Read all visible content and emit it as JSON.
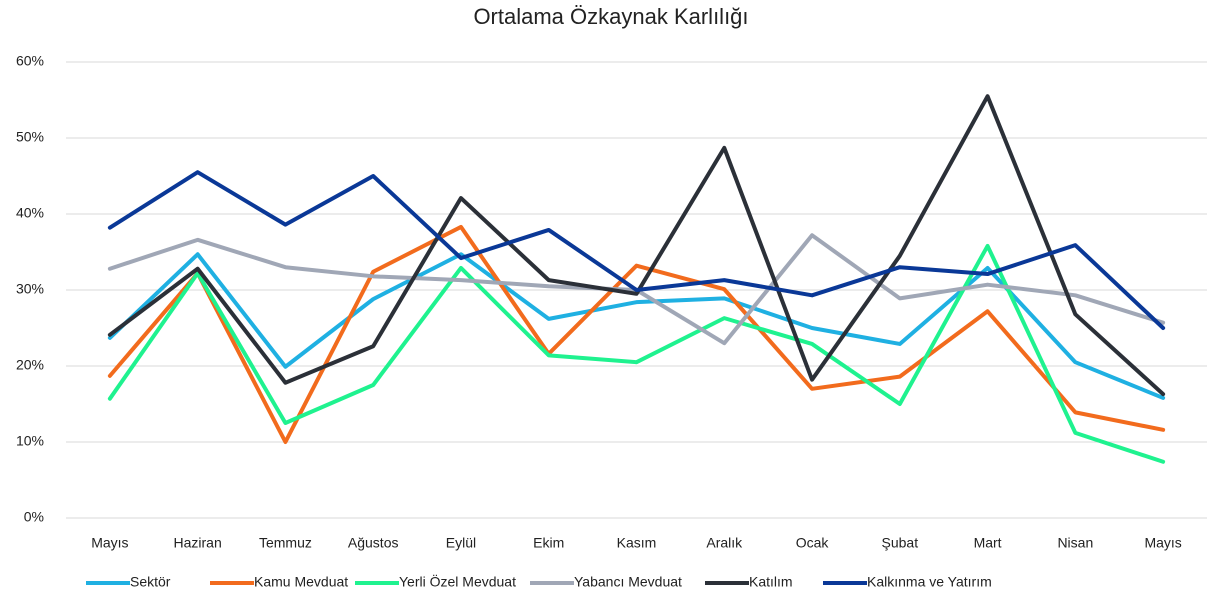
{
  "chart_data": {
    "type": "line",
    "title": "Ortalama Özkaynak Karlılığı",
    "categories": [
      "Mayıs",
      "Haziran",
      "Temmuz",
      "Ağustos",
      "Eylül",
      "Ekim",
      "Kasım",
      "Aralık",
      "Ocak",
      "Şubat",
      "Mart",
      "Nisan",
      "Mayıs"
    ],
    "series": [
      {
        "name": "Sektör",
        "color": "#1fb0e2",
        "values": [
          23.7,
          34.7,
          19.9,
          28.8,
          34.7,
          26.2,
          28.4,
          28.9,
          25,
          22.9,
          32.9,
          20.5,
          15.8
        ]
      },
      {
        "name": "Kamu Mevduat",
        "color": "#f26b1d",
        "values": [
          18.7,
          32.2,
          10,
          32.4,
          38.3,
          21.6,
          33.2,
          30.1,
          17,
          18.6,
          27.2,
          13.9,
          11.6
        ]
      },
      {
        "name": "Yerli Özel Mevduat",
        "color": "#1ff28f",
        "values": [
          15.7,
          32.2,
          12.5,
          17.5,
          32.9,
          21.4,
          20.5,
          26.3,
          22.9,
          15,
          35.8,
          11.2,
          7.4
        ]
      },
      {
        "name": "Yabancı Mevduat",
        "color": "#a0a7b6",
        "values": [
          32.8,
          36.6,
          33,
          31.8,
          31.3,
          30.5,
          30,
          23,
          37.2,
          28.9,
          30.7,
          29.3,
          25.7
        ]
      },
      {
        "name": "Katılım",
        "color": "#2b3038",
        "values": [
          24.1,
          32.8,
          17.8,
          22.6,
          42.1,
          31.3,
          29.5,
          48.7,
          18.2,
          34.5,
          55.5,
          26.8,
          16.3
        ]
      },
      {
        "name": "Kalkınma ve Yatırım",
        "color": "#0a3897",
        "values": [
          38.2,
          45.5,
          38.6,
          45,
          34.2,
          37.9,
          30,
          31.3,
          29.3,
          33,
          32.1,
          35.9,
          25
        ]
      }
    ],
    "ylim": [
      0,
      60
    ],
    "yticks": [
      {
        "value": 0,
        "label": "0%"
      },
      {
        "value": 10,
        "label": "10%"
      },
      {
        "value": 20,
        "label": "20%"
      },
      {
        "value": 30,
        "label": "30%"
      },
      {
        "value": 40,
        "label": "40%"
      },
      {
        "value": 50,
        "label": "50%"
      },
      {
        "value": 60,
        "label": "60%"
      }
    ],
    "grid": true,
    "legend": "bottom"
  }
}
